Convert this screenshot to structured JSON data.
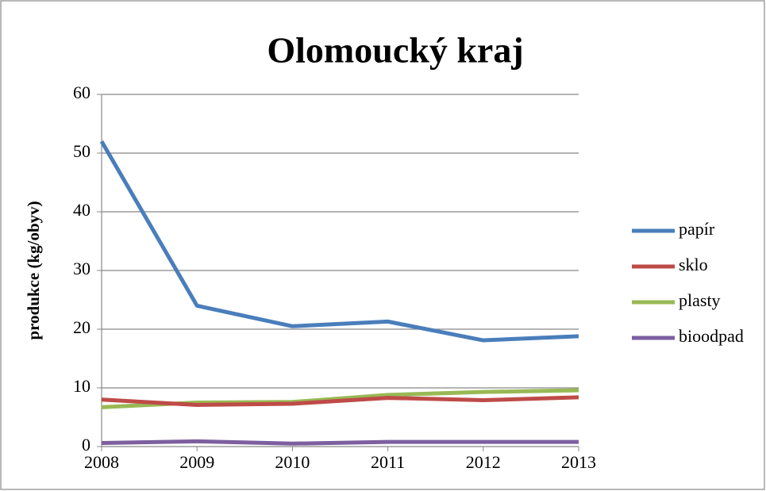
{
  "chart_data": {
    "type": "line",
    "title": "Olomoucký kraj",
    "y_label": "produkce (kg/obyv)",
    "categories": [
      "2008",
      "2009",
      "2010",
      "2011",
      "2012",
      "2013"
    ],
    "series": [
      {
        "name": "papír",
        "color": "#4a7ebb",
        "values": [
          52,
          24,
          20.5,
          21.3,
          18.1,
          18.8
        ]
      },
      {
        "name": "sklo",
        "color": "#be4b48",
        "values": [
          8.0,
          7.1,
          7.3,
          8.3,
          7.9,
          8.4
        ]
      },
      {
        "name": "plasty",
        "color": "#98b954",
        "values": [
          6.7,
          7.5,
          7.6,
          8.8,
          9.3,
          9.6
        ]
      },
      {
        "name": "bioodpad",
        "color": "#7d5fa0",
        "values": [
          0.6,
          0.9,
          0.5,
          0.8,
          0.8,
          0.8
        ]
      }
    ],
    "ylim": [
      0,
      60
    ],
    "yticks": [
      0,
      10,
      20,
      30,
      40,
      50,
      60
    ],
    "grid": true,
    "legend": "right"
  }
}
